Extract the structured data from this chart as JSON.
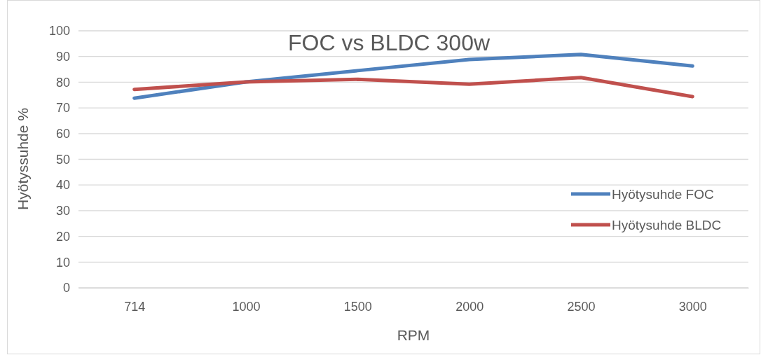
{
  "chart_data": {
    "type": "line",
    "title": "FOC vs BLDC 300w",
    "xlabel": "RPM",
    "ylabel": "Hyötyssuhde %",
    "categories": [
      "714",
      "1000",
      "1500",
      "2000",
      "2500",
      "3000"
    ],
    "series": [
      {
        "name": "Hyötysuhde FOC",
        "color": "#4f81bd",
        "values": [
          73.8,
          80.1,
          84.5,
          88.8,
          90.8,
          86.3
        ]
      },
      {
        "name": "Hyötysuhde BLDC",
        "color": "#c0504d",
        "values": [
          77.2,
          80.1,
          81.1,
          79.2,
          81.8,
          74.4
        ]
      }
    ],
    "ylim": [
      0,
      100
    ],
    "yticks": [
      0,
      10,
      20,
      30,
      40,
      50,
      60,
      70,
      80,
      90,
      100
    ],
    "grid": "y",
    "legend": "right",
    "marker": "none",
    "line_style": "solid"
  }
}
